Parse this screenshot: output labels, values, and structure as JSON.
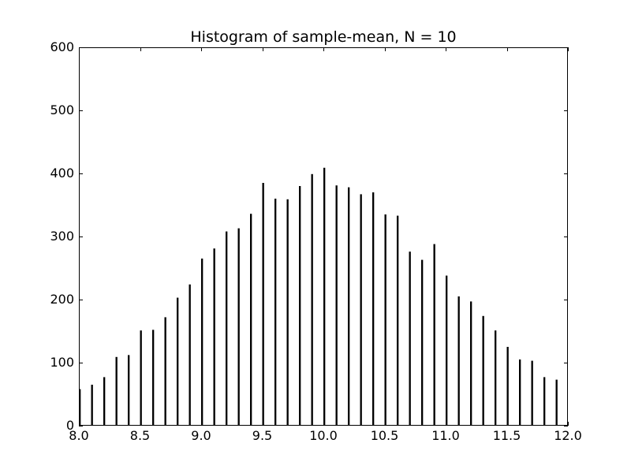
{
  "chart_data": {
    "type": "bar",
    "title": "Histogram of sample-mean, N = 10",
    "xlabel": "",
    "ylabel": "",
    "xlim": [
      8.0,
      12.0
    ],
    "ylim": [
      0,
      600
    ],
    "bar_width": 0.015,
    "x": [
      8.0,
      8.1,
      8.2,
      8.3,
      8.4,
      8.5,
      8.6,
      8.7,
      8.8,
      8.9,
      9.0,
      9.1,
      9.2,
      9.3,
      9.4,
      9.5,
      9.6,
      9.7,
      9.8,
      9.9,
      10.0,
      10.1,
      10.2,
      10.3,
      10.4,
      10.5,
      10.6,
      10.7,
      10.8,
      10.9,
      11.0,
      11.1,
      11.2,
      11.3,
      11.4,
      11.5,
      11.6,
      11.7,
      11.8,
      11.9
    ],
    "values": [
      58,
      65,
      77,
      109,
      112,
      151,
      152,
      172,
      203,
      224,
      265,
      281,
      308,
      313,
      336,
      385,
      360,
      359,
      380,
      399,
      409,
      381,
      378,
      367,
      370,
      335,
      333,
      276,
      263,
      288,
      238,
      205,
      197,
      174,
      151,
      125,
      105,
      103,
      77,
      73
    ],
    "x_ticks": [
      "8.0",
      "8.5",
      "9.0",
      "9.5",
      "10.0",
      "10.5",
      "11.0",
      "11.5",
      "12.0"
    ],
    "x_tick_values": [
      8.0,
      8.5,
      9.0,
      9.5,
      10.0,
      10.5,
      11.0,
      11.5,
      12.0
    ],
    "y_ticks": [
      "0",
      "100",
      "200",
      "300",
      "400",
      "500",
      "600"
    ],
    "y_tick_values": [
      0,
      100,
      200,
      300,
      400,
      500,
      600
    ],
    "grid": false,
    "bar_color": "#000000"
  }
}
